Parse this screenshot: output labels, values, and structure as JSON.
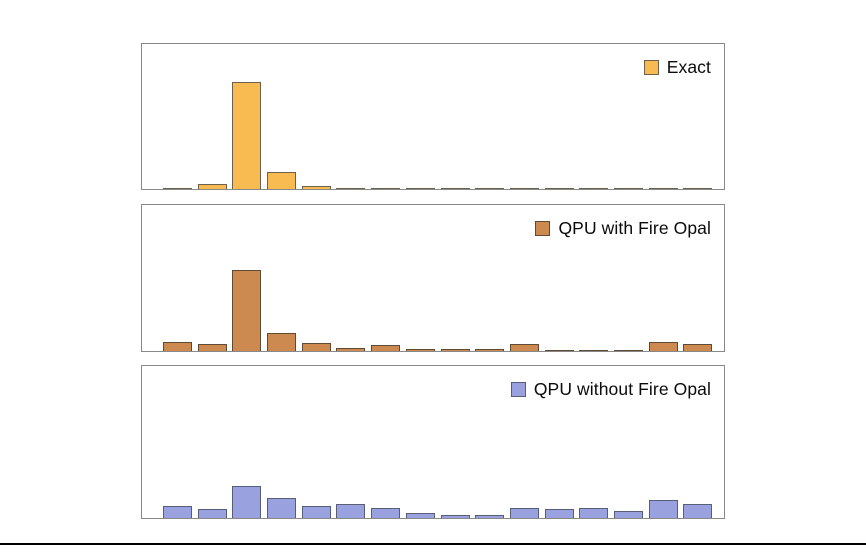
{
  "figure": {
    "background": "#ffffff",
    "bottom_rule_color": "#000000",
    "n_panels": 3
  },
  "chart_data": [
    {
      "type": "bar",
      "legend": {
        "label": "Exact",
        "position": "top-right"
      },
      "bar_color": "#F8BB52",
      "edge_color": "#6B614C",
      "n_bars": 16,
      "x": [
        0,
        1,
        2,
        3,
        4,
        5,
        6,
        7,
        8,
        9,
        10,
        11,
        12,
        13,
        14,
        15
      ],
      "values": [
        0.01,
        0.034,
        0.741,
        0.119,
        0.02,
        0.01,
        0.005,
        0.005,
        0.005,
        0.005,
        0.005,
        0.005,
        0.005,
        0.005,
        0.005,
        0.005
      ],
      "xlabel": "",
      "ylabel": "",
      "title": "",
      "axis_ticks_shown": false,
      "grid": false,
      "value_basis": "estimated fraction of panel height (no axis labels visible)"
    },
    {
      "type": "bar",
      "legend": {
        "label": "QPU with Fire Opal",
        "position": "top-right"
      },
      "bar_color": "#CD8A50",
      "edge_color": "#5E4A35",
      "n_bars": 16,
      "x": [
        0,
        1,
        2,
        3,
        4,
        5,
        6,
        7,
        8,
        9,
        10,
        11,
        12,
        13,
        14,
        15
      ],
      "values": [
        0.064,
        0.05,
        0.554,
        0.124,
        0.054,
        0.02,
        0.038,
        0.015,
        0.015,
        0.015,
        0.051,
        0.007,
        0.01,
        0.007,
        0.064,
        0.046
      ],
      "xlabel": "",
      "ylabel": "",
      "title": "",
      "axis_ticks_shown": false,
      "grid": false,
      "value_basis": "estimated fraction of panel height (no axis labels visible)"
    },
    {
      "type": "bar",
      "legend": {
        "label": "QPU without Fire Opal",
        "position": "top-right"
      },
      "bar_color": "#99A2DE",
      "edge_color": "#565E78",
      "n_bars": 16,
      "x": [
        0,
        1,
        2,
        3,
        4,
        5,
        6,
        7,
        8,
        9,
        10,
        11,
        12,
        13,
        14,
        15
      ],
      "values": [
        0.081,
        0.061,
        0.21,
        0.134,
        0.081,
        0.093,
        0.069,
        0.032,
        0.018,
        0.022,
        0.069,
        0.056,
        0.064,
        0.049,
        0.118,
        0.093
      ],
      "xlabel": "",
      "ylabel": "",
      "title": "",
      "axis_ticks_shown": false,
      "grid": false,
      "value_basis": "estimated fraction of panel height (no axis labels visible)"
    }
  ]
}
